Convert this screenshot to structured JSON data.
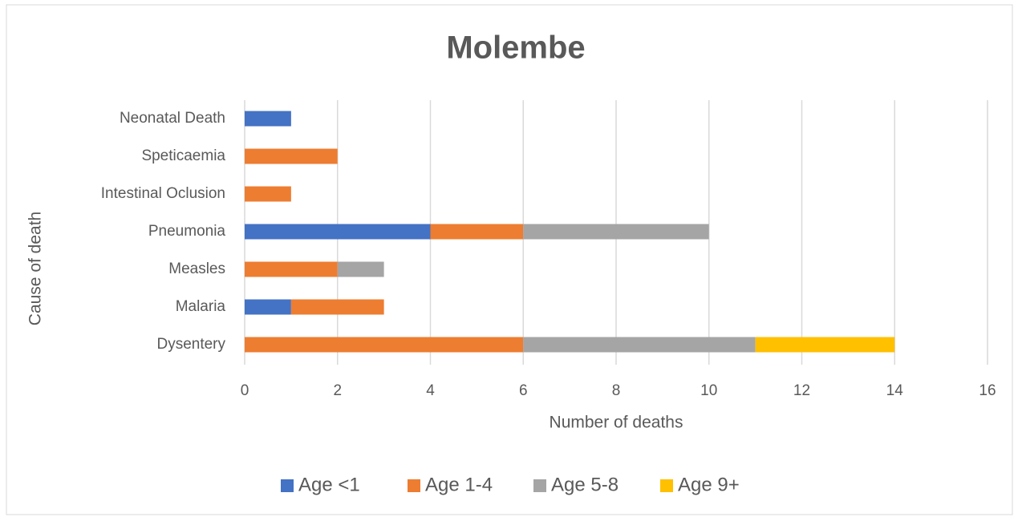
{
  "chart_data": {
    "type": "hbar_stacked",
    "title": "Molembe",
    "x_label": "Number of deaths",
    "y_label": "Cause of death",
    "categories": [
      "Neonatal Death",
      "Speticaemia",
      "Intestinal Oclusion",
      "Pneumonia",
      "Measles",
      "Malaria",
      "Dysentery"
    ],
    "series": [
      {
        "name": "Age <1",
        "color": "#4472c4",
        "values": [
          1,
          0,
          0,
          4,
          0,
          1,
          0
        ]
      },
      {
        "name": "Age 1-4",
        "color": "#ed7d31",
        "values": [
          0,
          2,
          1,
          2,
          2,
          2,
          6
        ]
      },
      {
        "name": "Age 5-8",
        "color": "#a5a5a5",
        "values": [
          0,
          0,
          0,
          4,
          1,
          0,
          5
        ]
      },
      {
        "name": "Age 9+",
        "color": "#ffc000",
        "values": [
          0,
          0,
          0,
          0,
          0,
          0,
          3
        ]
      }
    ],
    "xlim": [
      0,
      16
    ],
    "xticks": [
      0,
      2,
      4,
      6,
      8,
      10,
      12,
      14,
      16
    ],
    "grid": true,
    "legend": "bottom"
  }
}
